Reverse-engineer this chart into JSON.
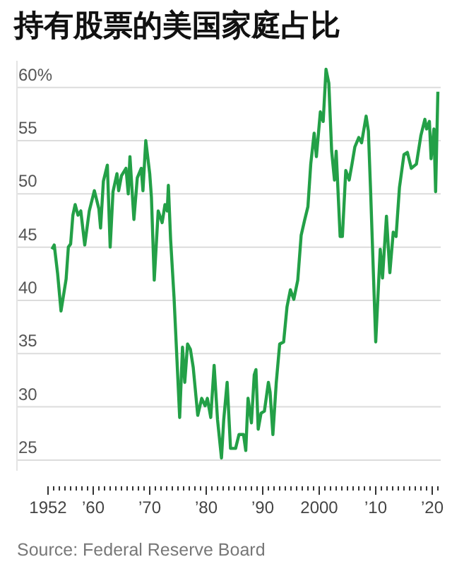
{
  "chart_data": {
    "type": "line",
    "title": "持有股票的美国家庭占比",
    "x": [
      1952.7,
      1953.1,
      1953.7,
      1954.3,
      1955.2,
      1955.6,
      1956,
      1956.4,
      1956.8,
      1957.3,
      1957.8,
      1958.5,
      1959.3,
      1960.2,
      1961,
      1961.3,
      1961.8,
      1962.5,
      1963,
      1963.5,
      1964.2,
      1964.5,
      1965,
      1965.8,
      1966.2,
      1966.5,
      1967.2,
      1967.8,
      1968.5,
      1968.8,
      1969.3,
      1970,
      1970.3,
      1970.8,
      1971.5,
      1972.2,
      1972.7,
      1973.1,
      1973.3,
      1973.7,
      1974.3,
      1975,
      1975.3,
      1975.8,
      1976.2,
      1976.7,
      1977.2,
      1977.7,
      1978.5,
      1979.2,
      1979.8,
      1980.2,
      1980.8,
      1981.4,
      1982,
      1982.7,
      1983.1,
      1983.7,
      1984.3,
      1985.2,
      1985.8,
      1986.6,
      1987,
      1987.4,
      1988,
      1988.5,
      1988.8,
      1989.2,
      1989.7,
      1990.3,
      1991,
      1991.3,
      1991.8,
      1992.4,
      1993,
      1993.7,
      1994.3,
      1994.9,
      1995.5,
      1996.2,
      1996.8,
      1997.4,
      1998,
      1998.5,
      1999.1,
      1999.5,
      2000.2,
      2000.7,
      2001.2,
      2001.7,
      2002.2,
      2002.7,
      2003,
      2003.7,
      2004.1,
      2004.7,
      2005.3,
      2005.8,
      2006.3,
      2007,
      2007.5,
      2008.3,
      2008.7,
      2009.1,
      2010,
      2010.8,
      2011.2,
      2011.9,
      2012.5,
      2013.1,
      2013.6,
      2014.2,
      2015,
      2015.6,
      2016.3,
      2017.2,
      2018,
      2018.7,
      2019,
      2019.5,
      2019.8,
      2020.3,
      2020.6,
      2021
    ],
    "series": [
      {
        "color": "#23a047",
        "values": [
          44.8,
          45.2,
          42.5,
          39,
          42,
          45,
          45.3,
          48,
          49,
          48,
          48.4,
          45.2,
          48.4,
          50.3,
          48.6,
          46.8,
          51.2,
          52.7,
          45,
          50.2,
          51.9,
          50.3,
          51.7,
          52.4,
          50,
          53.5,
          47.6,
          51.5,
          52.4,
          50.3,
          55,
          51.9,
          49.7,
          41.9,
          48.4,
          47.3,
          49,
          48.4,
          50.8,
          45.7,
          40.3,
          32.4,
          29,
          35.6,
          32.3,
          35.9,
          35.4,
          33.7,
          29.2,
          30.8,
          30.1,
          30.8,
          29,
          33.9,
          28.8,
          25.2,
          28.8,
          32.3,
          26.1,
          26.1,
          27.4,
          27.4,
          25.9,
          30.8,
          28.5,
          33,
          33.5,
          27.9,
          29.4,
          29.6,
          32.3,
          31.4,
          27.4,
          32.3,
          35.9,
          36.1,
          39.4,
          41,
          40.1,
          41.9,
          46.1,
          47.5,
          48.8,
          52.8,
          55.7,
          53.5,
          57.7,
          56.8,
          61.7,
          60.4,
          54,
          51.3,
          54,
          46,
          46,
          52.2,
          51.3,
          52.8,
          54.4,
          55.3,
          54.8,
          57.3,
          55.9,
          50.2,
          36.1,
          44.8,
          42.1,
          47.9,
          42.6,
          46.4,
          46,
          50.6,
          53.7,
          53.9,
          52.4,
          52.8,
          55.5,
          57,
          56.1,
          56.8,
          53.3,
          56.1,
          50.2,
          59.6
        ]
      }
    ],
    "xlim": [
      1946.5,
      2021.5
    ],
    "xticks": [
      {
        "value": 1952,
        "label": "1952"
      },
      {
        "value": 1953,
        "label": null
      },
      {
        "value": 1954,
        "label": null
      },
      {
        "value": 1955,
        "label": null
      },
      {
        "value": 1956,
        "label": null
      },
      {
        "value": 1957,
        "label": null
      },
      {
        "value": 1958,
        "label": null
      },
      {
        "value": 1959,
        "label": null
      },
      {
        "value": 1960,
        "label": "’60"
      },
      {
        "value": 1961,
        "label": null
      },
      {
        "value": 1962,
        "label": null
      },
      {
        "value": 1963,
        "label": null
      },
      {
        "value": 1964,
        "label": null
      },
      {
        "value": 1965,
        "label": null
      },
      {
        "value": 1966,
        "label": null
      },
      {
        "value": 1967,
        "label": null
      },
      {
        "value": 1968,
        "label": null
      },
      {
        "value": 1969,
        "label": null
      },
      {
        "value": 1970,
        "label": "’70"
      },
      {
        "value": 1971,
        "label": null
      },
      {
        "value": 1972,
        "label": null
      },
      {
        "value": 1973,
        "label": null
      },
      {
        "value": 1974,
        "label": null
      },
      {
        "value": 1975,
        "label": null
      },
      {
        "value": 1976,
        "label": null
      },
      {
        "value": 1977,
        "label": null
      },
      {
        "value": 1978,
        "label": null
      },
      {
        "value": 1979,
        "label": null
      },
      {
        "value": 1980,
        "label": "’80"
      },
      {
        "value": 1981,
        "label": null
      },
      {
        "value": 1982,
        "label": null
      },
      {
        "value": 1983,
        "label": null
      },
      {
        "value": 1984,
        "label": null
      },
      {
        "value": 1985,
        "label": null
      },
      {
        "value": 1986,
        "label": null
      },
      {
        "value": 1987,
        "label": null
      },
      {
        "value": 1988,
        "label": null
      },
      {
        "value": 1989,
        "label": null
      },
      {
        "value": 1990,
        "label": "’90"
      },
      {
        "value": 1991,
        "label": null
      },
      {
        "value": 1992,
        "label": null
      },
      {
        "value": 1993,
        "label": null
      },
      {
        "value": 1994,
        "label": null
      },
      {
        "value": 1995,
        "label": null
      },
      {
        "value": 1996,
        "label": null
      },
      {
        "value": 1997,
        "label": null
      },
      {
        "value": 1998,
        "label": null
      },
      {
        "value": 1999,
        "label": null
      },
      {
        "value": 2000,
        "label": "2000"
      },
      {
        "value": 2001,
        "label": null
      },
      {
        "value": 2002,
        "label": null
      },
      {
        "value": 2003,
        "label": null
      },
      {
        "value": 2004,
        "label": null
      },
      {
        "value": 2005,
        "label": null
      },
      {
        "value": 2006,
        "label": null
      },
      {
        "value": 2007,
        "label": null
      },
      {
        "value": 2008,
        "label": null
      },
      {
        "value": 2009,
        "label": null
      },
      {
        "value": 2010,
        "label": "’10"
      },
      {
        "value": 2011,
        "label": null
      },
      {
        "value": 2012,
        "label": null
      },
      {
        "value": 2013,
        "label": null
      },
      {
        "value": 2014,
        "label": null
      },
      {
        "value": 2015,
        "label": null
      },
      {
        "value": 2016,
        "label": null
      },
      {
        "value": 2017,
        "label": null
      },
      {
        "value": 2018,
        "label": null
      },
      {
        "value": 2019,
        "label": null
      },
      {
        "value": 2020,
        "label": "’20"
      },
      {
        "value": 2021,
        "label": null
      }
    ],
    "ylim": [
      24,
      62.5
    ],
    "yticks": [
      25,
      30,
      35,
      40,
      45,
      50,
      55,
      {
        "value": 60,
        "label": "60%"
      }
    ],
    "grid": "y",
    "marker": "none",
    "line_style": "solid",
    "annotations": [
      "Source: Federal Reserve Board"
    ]
  }
}
